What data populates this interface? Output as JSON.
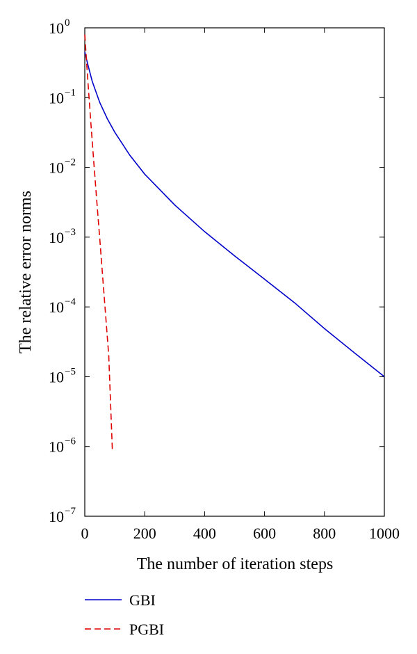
{
  "chart_data": {
    "type": "line",
    "xlabel": "The number of iteration steps",
    "ylabel": "The relative error norms",
    "xlim": [
      0,
      1000
    ],
    "ylim": [
      1e-07,
      1
    ],
    "y_scale": "log",
    "x_ticks": [
      0,
      200,
      400,
      600,
      800,
      1000
    ],
    "y_ticks": [
      {
        "value": 1,
        "base": "10",
        "exp": "0"
      },
      {
        "value": 0.1,
        "base": "10",
        "exp": "−1"
      },
      {
        "value": 0.01,
        "base": "10",
        "exp": "−2"
      },
      {
        "value": 0.001,
        "base": "10",
        "exp": "−3"
      },
      {
        "value": 0.0001,
        "base": "10",
        "exp": "−4"
      },
      {
        "value": 1e-05,
        "base": "10",
        "exp": "−5"
      },
      {
        "value": 1e-06,
        "base": "10",
        "exp": "−6"
      },
      {
        "value": 1e-07,
        "base": "10",
        "exp": "−7"
      }
    ],
    "grid": false,
    "legend_position": "bottom-left, below plot",
    "series": [
      {
        "name": "GBI",
        "color": "#0000cc",
        "dash": "solid",
        "x": [
          0,
          10,
          25,
          50,
          75,
          100,
          150,
          200,
          300,
          400,
          500,
          600,
          700,
          800,
          900,
          1000
        ],
        "y": [
          0.45,
          0.3,
          0.17,
          0.085,
          0.05,
          0.032,
          0.015,
          0.008,
          0.0029,
          0.0012,
          0.00054,
          0.00025,
          0.000115,
          4.9e-05,
          2.2e-05,
          1e-05
        ]
      },
      {
        "name": "PGBI",
        "color": "#e00000",
        "dash": "dashed",
        "x": [
          0,
          10,
          20,
          30,
          40,
          50,
          60,
          70,
          80,
          92
        ],
        "y": [
          0.8,
          0.18,
          0.045,
          0.012,
          0.0033,
          0.00095,
          0.00026,
          7.2e-05,
          2e-05,
          9e-07
        ]
      }
    ]
  }
}
